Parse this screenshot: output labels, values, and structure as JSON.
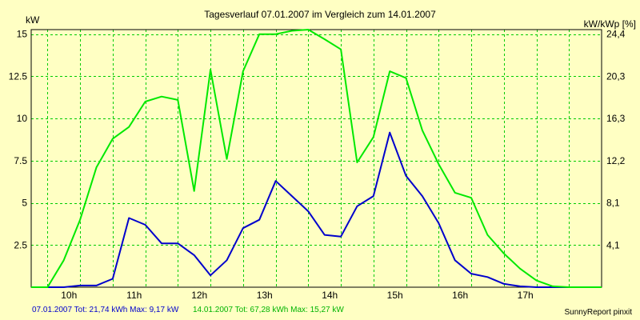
{
  "chart_data": {
    "type": "line",
    "title": "Tagesverlauf 07.01.2007 im Vergleich zum 14.01.2007",
    "ylabel_left": "kW",
    "ylabel_right": "kW/kWp [%]",
    "x_range": [
      9.25,
      18.0
    ],
    "y_range": [
      0,
      15.27
    ],
    "y_ticks_left": [
      {
        "v": 2.5,
        "label": "2.5"
      },
      {
        "v": 5,
        "label": "5"
      },
      {
        "v": 7.5,
        "label": "7.5"
      },
      {
        "v": 10,
        "label": "10"
      },
      {
        "v": 12.5,
        "label": "12.5"
      },
      {
        "v": 15,
        "label": "15"
      }
    ],
    "y_ticks_right": [
      {
        "v": 2.5,
        "label": "4,1"
      },
      {
        "v": 5,
        "label": "8,1"
      },
      {
        "v": 7.5,
        "label": "12,2"
      },
      {
        "v": 10,
        "label": "16,3"
      },
      {
        "v": 12.5,
        "label": "20,3"
      },
      {
        "v": 15,
        "label": "24,4"
      }
    ],
    "x_ticks": [
      {
        "v": 10,
        "label": "10h"
      },
      {
        "v": 11,
        "label": "11h"
      },
      {
        "v": 12,
        "label": "12h"
      },
      {
        "v": 13,
        "label": "13h"
      },
      {
        "v": 14,
        "label": "14h"
      },
      {
        "v": 15,
        "label": "15h"
      },
      {
        "v": 16,
        "label": "16h"
      },
      {
        "v": 17,
        "label": "17h"
      }
    ],
    "x_gridlines": [
      9.5,
      10,
      10.5,
      11,
      11.5,
      12,
      12.5,
      13,
      13.5,
      14,
      14.5,
      15,
      15.5,
      16,
      16.5,
      17,
      17.5
    ],
    "series": [
      {
        "name": "07.01.2007",
        "color": "#0000cc",
        "x": [
          9.5,
          9.75,
          10.0,
          10.25,
          10.5,
          10.75,
          11.0,
          11.25,
          11.5,
          11.75,
          12.0,
          12.25,
          12.5,
          12.75,
          13.0,
          13.25,
          13.5,
          13.75,
          14.0,
          14.25,
          14.5,
          14.75,
          15.0,
          15.25,
          15.5,
          15.75,
          16.0,
          16.25,
          16.5,
          16.75,
          17.0,
          17.25,
          17.5,
          17.75,
          18.0
        ],
        "values": [
          0,
          0,
          0.1,
          0.1,
          0.5,
          4.1,
          3.7,
          2.6,
          2.6,
          1.9,
          0.7,
          1.6,
          3.5,
          4.0,
          6.3,
          5.4,
          4.5,
          3.1,
          3.0,
          4.8,
          5.4,
          9.17,
          6.6,
          5.4,
          3.8,
          1.6,
          0.8,
          0.6,
          0.2,
          0.05,
          0,
          0,
          0,
          0,
          0
        ]
      },
      {
        "name": "14.01.2007",
        "color": "#00e800",
        "x": [
          9.25,
          9.5,
          9.75,
          10.0,
          10.25,
          10.5,
          10.75,
          11.0,
          11.25,
          11.5,
          11.75,
          12.0,
          12.25,
          12.5,
          12.75,
          13.0,
          13.25,
          13.5,
          13.75,
          14.0,
          14.25,
          14.5,
          14.75,
          15.0,
          15.25,
          15.5,
          15.75,
          16.0,
          16.25,
          16.5,
          16.75,
          17.0,
          17.25,
          17.5,
          17.75,
          18.0
        ],
        "values": [
          0,
          0,
          1.6,
          4.0,
          7.1,
          8.8,
          9.5,
          11.0,
          11.3,
          11.1,
          5.7,
          12.9,
          7.6,
          12.8,
          15.0,
          15.0,
          15.2,
          15.27,
          14.7,
          14.1,
          7.4,
          8.9,
          12.8,
          12.4,
          9.3,
          7.3,
          5.6,
          5.3,
          3.1,
          2.0,
          1.1,
          0.4,
          0.05,
          0,
          0,
          0
        ]
      }
    ]
  },
  "footer": {
    "series1_text": "07.01.2007 Tot: 21,74 kWh Max: 9,17 kW",
    "series2_text": "14.01.2007 Tot: 67,28 kWh Max: 15,27 kW",
    "credit": "SunnyReport pinxit"
  },
  "colors": {
    "background": "#ffffc3",
    "grid": "#00cc00",
    "series1": "#0000cc",
    "series2": "#00e800"
  }
}
